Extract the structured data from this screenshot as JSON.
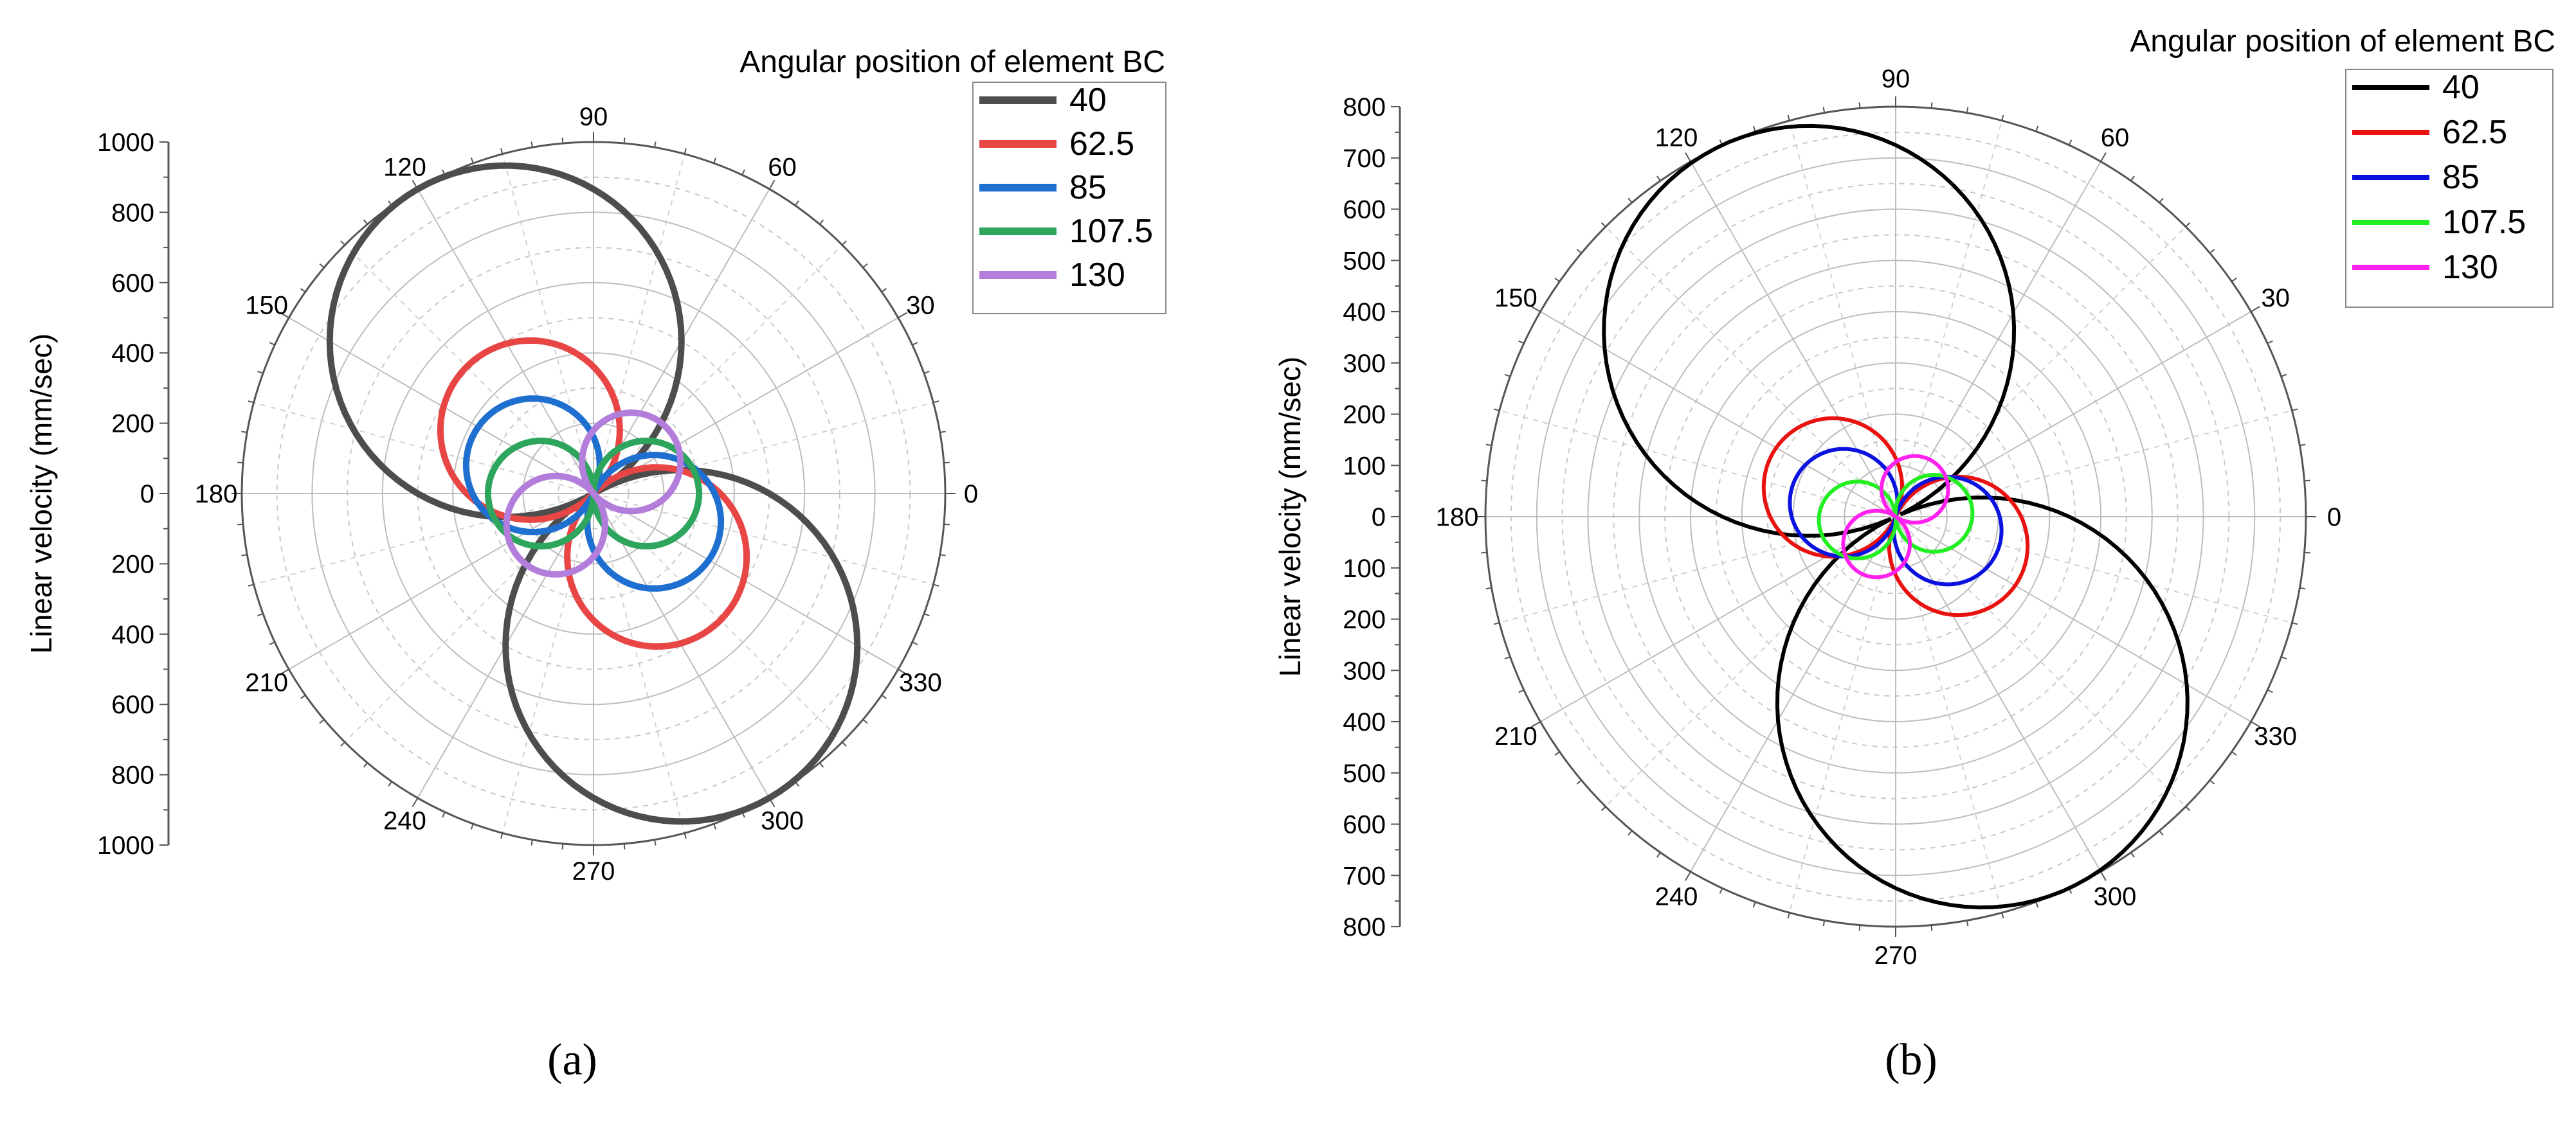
{
  "figure": {
    "caption_a": "(a)",
    "caption_b": "(b)"
  },
  "chart_data": [
    {
      "type": "polar-line",
      "panel": "(a)",
      "ylabel": "Linear velocity (mm/sec)",
      "legend_title": "Angular position of element BC",
      "legend_position": "top-right",
      "radial_range": [
        0,
        1000
      ],
      "radial_ticks": [
        "1000",
        "800",
        "600",
        "400",
        "200",
        "0",
        "200",
        "400",
        "600",
        "800",
        "1000"
      ],
      "angle_ticks": [
        "0",
        "30",
        "60",
        "90",
        "120",
        "150",
        "180",
        "210",
        "240",
        "270",
        "300",
        "330"
      ],
      "grid": true,
      "curve_model": "r = A·|cos(theta - phi)|",
      "series": [
        {
          "name": "40",
          "amplitude": 1000,
          "phase_deg": -60,
          "color": "#4d4d4d"
        },
        {
          "name": "62.5",
          "amplitude": 510,
          "phase_deg": -45,
          "color": "#e84545"
        },
        {
          "name": "85",
          "amplitude": 380,
          "phase_deg": -25,
          "color": "#1f6fd1"
        },
        {
          "name": "107.5",
          "amplitude": 300,
          "phase_deg": 0,
          "color": "#2ea55d"
        },
        {
          "name": "130",
          "amplitude": 280,
          "phase_deg": 40,
          "color": "#b37ddb"
        }
      ]
    },
    {
      "type": "polar-line",
      "panel": "(b)",
      "ylabel": "Linear velocity (mm/sec)",
      "legend_title": "Angular position of element BC",
      "legend_position": "top-right",
      "radial_range": [
        0,
        800
      ],
      "radial_ticks": [
        "800",
        "700",
        "600",
        "500",
        "400",
        "300",
        "200",
        "100",
        "0",
        "100",
        "200",
        "300",
        "400",
        "500",
        "600",
        "700",
        "800"
      ],
      "angle_ticks": [
        "0",
        "30",
        "60",
        "90",
        "120",
        "150",
        "180",
        "210",
        "240",
        "270",
        "300",
        "330"
      ],
      "grid": true,
      "curve_model": "r = A·|cos(theta - phi)|",
      "series": [
        {
          "name": "40",
          "amplitude": 800,
          "phase_deg": -65,
          "color": "#000000"
        },
        {
          "name": "62.5",
          "amplitude": 270,
          "phase_deg": -25,
          "color": "#e8120f"
        },
        {
          "name": "85",
          "amplitude": 210,
          "phase_deg": -15,
          "color": "#0a12e0"
        },
        {
          "name": "107.5",
          "amplitude": 150,
          "phase_deg": 5,
          "color": "#22ee22"
        },
        {
          "name": "130",
          "amplitude": 130,
          "phase_deg": 55,
          "color": "#ff22ee"
        }
      ]
    }
  ]
}
